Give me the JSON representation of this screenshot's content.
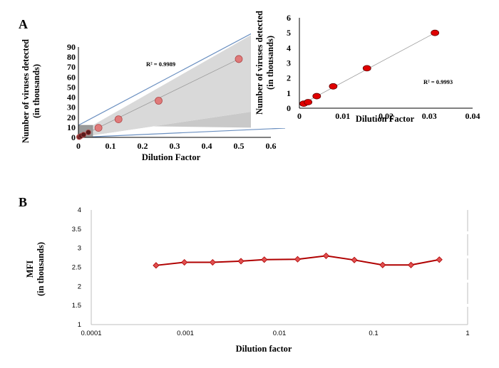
{
  "panel_a_label": "A",
  "panel_b_label": "B",
  "chart_data": [
    {
      "type": "scatter",
      "panel": "A",
      "xlabel": "Dilution Factor",
      "ylabel": [
        "Number of viruses detected",
        "(in thousands)"
      ],
      "xlim": [
        0,
        0.6
      ],
      "ylim": [
        0,
        90
      ],
      "xticks": [
        "0",
        "0.1",
        "0.2",
        "0.3",
        "0.4",
        "0.5",
        "0.6"
      ],
      "yticks": [
        "0",
        "10",
        "20",
        "30",
        "40",
        "50",
        "60",
        "70",
        "80",
        "90"
      ],
      "annotation": "R² = 0.9989",
      "points": [
        {
          "x": 0.002,
          "y": 0.4
        },
        {
          "x": 0.004,
          "y": 0.5
        },
        {
          "x": 0.008,
          "y": 1.4
        },
        {
          "x": 0.016,
          "y": 2.7
        },
        {
          "x": 0.031,
          "y": 5.0
        },
        {
          "x": 0.0625,
          "y": 9.5
        },
        {
          "x": 0.125,
          "y": 18
        },
        {
          "x": 0.25,
          "y": 36.5
        },
        {
          "x": 0.5,
          "y": 78
        }
      ],
      "colors": {
        "marker": "#e07a7a",
        "marker_stroke": "#b04848",
        "line": "#999999"
      }
    },
    {
      "type": "scatter",
      "panel": "A-inset",
      "xlabel": "Dilution Factor",
      "ylabel": [
        "Number of viruses detected",
        "(in thousands)"
      ],
      "xlim": [
        0,
        0.04
      ],
      "ylim": [
        0,
        6
      ],
      "xticks": [
        "0",
        "0.01",
        "0.02",
        "0.03",
        "0.04"
      ],
      "yticks": [
        "0",
        "1",
        "2",
        "3",
        "4",
        "5",
        "6"
      ],
      "annotation": "R² = 0.9993",
      "points": [
        {
          "x": 0.001,
          "y": 0.3
        },
        {
          "x": 0.002,
          "y": 0.4
        },
        {
          "x": 0.004,
          "y": 0.8
        },
        {
          "x": 0.0078,
          "y": 1.45
        },
        {
          "x": 0.0156,
          "y": 2.65
        },
        {
          "x": 0.0313,
          "y": 5.0
        }
      ],
      "colors": {
        "marker": "#e00000",
        "marker_stroke": "#600000",
        "line": "#999999"
      }
    },
    {
      "type": "line",
      "panel": "B",
      "xlabel": "Dilution factor",
      "ylabel": [
        "MFI",
        "(in thousands)"
      ],
      "xscale": "log",
      "xlim": [
        0.0001,
        1
      ],
      "ylim": [
        1,
        4
      ],
      "xticks": [
        "0.0001",
        "0.001",
        "0.01",
        "0.1",
        "1"
      ],
      "yticks": [
        "1",
        "1.5",
        "2",
        "2.5",
        "3",
        "3.5",
        "4"
      ],
      "points": [
        {
          "x": 0.000488,
          "y": 2.55
        },
        {
          "x": 0.000977,
          "y": 2.63
        },
        {
          "x": 0.00195,
          "y": 2.63
        },
        {
          "x": 0.0039,
          "y": 2.66
        },
        {
          "x": 0.0069,
          "y": 2.7
        },
        {
          "x": 0.0156,
          "y": 2.71
        },
        {
          "x": 0.0313,
          "y": 2.8
        },
        {
          "x": 0.0625,
          "y": 2.69
        },
        {
          "x": 0.125,
          "y": 2.56
        },
        {
          "x": 0.25,
          "y": 2.56
        },
        {
          "x": 0.5,
          "y": 2.7
        }
      ],
      "colors": {
        "line": "#b00000",
        "marker": "#e05050"
      }
    }
  ]
}
